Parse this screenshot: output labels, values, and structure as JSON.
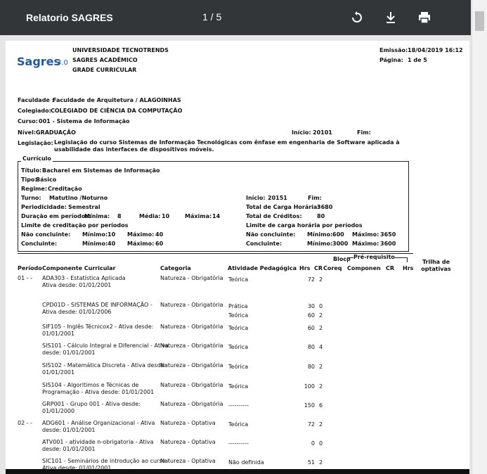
{
  "toolbar": {
    "title": "Relatorio SAGRES",
    "page_indicator": "1 / 5"
  },
  "header": {
    "logo": "Sagres",
    "logo_version": "3.0",
    "institution": "UNIVERSIDADE TECNOTRENDS",
    "system": "SAGRES ACADÊMICO",
    "report": "GRADE CURRICULAR",
    "emission_label": "Emissão:",
    "emission": "18/04/2019 16:12",
    "page_label": "Página:",
    "page": "1 de 5"
  },
  "info": {
    "faculdade_label": "Faculdade :",
    "faculdade": "Faculdade de Arquitetura / ALAGOINHAS",
    "colegiado_label": "Colegiado:",
    "colegiado": "COLEGIADO DE CIÊNCIA DA COMPUTAÇÃO",
    "curso_label": "Curso:",
    "curso": "001 - Sistema de Informação",
    "nivel_label": "Nível:",
    "nivel": "GRADUAÇÃO",
    "inicio_label": "Início:",
    "inicio": "20101",
    "fim_label": "Fim:",
    "legislacao_label": "Legislação:",
    "legislacao": "Legislação do curso Sistemas de Informação Tecnológicas com ênfase em engenharia de Software aplicada à usabilidade das interfaces de dispositivos móveis."
  },
  "curriculo": {
    "legend": "Currículo",
    "titulo_label": "Título:",
    "titulo": "Bacharel em Sistemas de Informação",
    "tipo_label": "Tipo:",
    "tipo": "Básico",
    "regime_label": "Regime:",
    "regime": "Creditação",
    "turno_label": "Turno:",
    "turno": "Matutino /Noturno",
    "periodicidade_label": "Periodicidade:",
    "periodicidade": "Semestral",
    "duracao_label": "Duração em períodos:",
    "minima_label": "Mínima:",
    "minima": "8",
    "media_label": "Média:",
    "media": "10",
    "maxima_label": "Máxima:",
    "maxima": "14",
    "limite_cred_label": "Limite de creditação por períodos",
    "nao_conc_label": "Não concluinte:",
    "min_label": "Mínimo:",
    "max_label": "Máximo:",
    "cred_nc_min": "10",
    "cred_nc_max": "40",
    "conc_label": "Concluinte:",
    "cred_c_min": "40",
    "cred_c_max": "60",
    "inicio_label": "Início:",
    "inicio": "20151",
    "fim_label": "Fim:",
    "carga_label": "Total de Carga Horária:",
    "carga": "3680",
    "creditos_label": "Total de Créditos:",
    "creditos": "80",
    "limite_carga_label": "Limite de carga horária por períodos",
    "carga_nc_min": "600",
    "carga_nc_max": "3650",
    "carga_c_min": "3000",
    "carga_c_max": "3600"
  },
  "table": {
    "headers": {
      "periodo": "Período",
      "componente": "Componente Curricular",
      "categoria": "Categoria",
      "atividade": "Atividade Pedagógica",
      "hrs": "Hrs",
      "cr": "CR",
      "bloco": "Bloco",
      "coreq": "Coreq",
      "prereq": "Pré-requisito",
      "pre_comp": "Componen",
      "pre_cr": "CR",
      "pre_hrs": "Hrs",
      "trilha": "Trilha de optativas"
    },
    "rows": [
      {
        "periodo": "01 - -",
        "componente": "ADA303 - Estatística Aplicada",
        "ativa": "Ativa desde: 01/01/2001",
        "categoria": "Natureza - Obrigatória",
        "activities": [
          {
            "name": "Teórica",
            "hrs": 72,
            "cr": 2
          }
        ]
      },
      {
        "periodo": null,
        "componente": "CPD01D - SISTEMAS DE INFORMAÇÃO -",
        "ativa": "Ativa desde: 01/01/2006",
        "categoria": "Natureza - Obrigatória",
        "activities": [
          {
            "name": "Prática",
            "hrs": 30,
            "cr": 0
          },
          {
            "name": "Teórica",
            "hrs": 60,
            "cr": 2
          }
        ]
      },
      {
        "periodo": null,
        "componente": "SIF105 - Inglês Técnicox2 - Ativa desde:",
        "ativa": "01/01/2001",
        "categoria": "Natureza - Obrigatória",
        "activities": [
          {
            "name": "Teórica",
            "hrs": 60,
            "cr": 2
          }
        ]
      },
      {
        "periodo": null,
        "componente": "SIS101 - Cálculo Integral e Diferencial - Ativa",
        "ativa": "desde: 01/01/2001",
        "categoria": "Natureza - Obrigatória",
        "activities": [
          {
            "name": "Teórica",
            "hrs": 80,
            "cr": 4
          }
        ]
      },
      {
        "periodo": null,
        "componente": "SIS102 - Matemática Discreta - Ativa desde:",
        "ativa": "01/01/2001",
        "categoria": "Natureza - Obrigatória",
        "activities": [
          {
            "name": "Teórica",
            "hrs": 80,
            "cr": 2
          }
        ]
      },
      {
        "periodo": null,
        "componente": "SIS104 - Algoritimos e Técnicas de",
        "ativa": "Programação - Ativa desde: 01/01/2001",
        "categoria": "Natureza - Obrigatória",
        "activities": [
          {
            "name": "Teórica",
            "hrs": 100,
            "cr": 2
          }
        ]
      },
      {
        "periodo": null,
        "componente": "GRP001 - Grupo 001 - Ativa desde:",
        "ativa": "01/01/2000",
        "categoria": "Natureza - Obrigatória",
        "activities": [
          {
            "name": "----------",
            "hrs": 150,
            "cr": 6
          }
        ]
      },
      {
        "periodo": "02 - -",
        "componente": "ADG601 - Análise Organizacional - Ativa",
        "ativa": "desde: 01/01/2001",
        "categoria": "Natureza - Optativa",
        "activities": [
          {
            "name": "Teórica",
            "hrs": 72,
            "cr": 2
          }
        ]
      },
      {
        "periodo": null,
        "componente": "ATV001 - atividade n-obrigatoria - Ativa",
        "ativa": "desde: 01/01/2001",
        "categoria": "Natureza - Optativa",
        "activities": [
          {
            "name": "----------",
            "hrs": 0,
            "cr": 0
          }
        ]
      },
      {
        "periodo": null,
        "componente": "SIC101 - Seminários de introdução ao curso -",
        "ativa": "Ativa desde: 01/01/2001",
        "categoria": "Natureza - Optativa",
        "activities": [
          {
            "name": "Não definida",
            "hrs": 51,
            "cr": 2
          }
        ]
      }
    ]
  }
}
